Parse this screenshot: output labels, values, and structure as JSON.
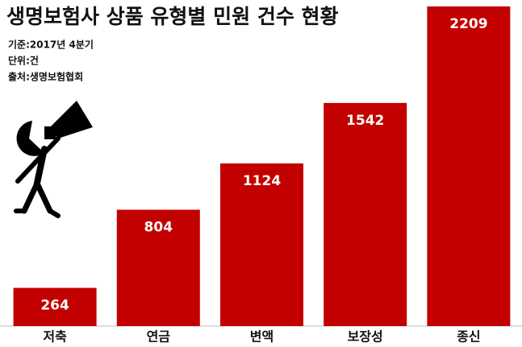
{
  "chart_data": {
    "type": "bar",
    "title": "생명보험사 상품 유형별 민원 건수 현황",
    "notes": [
      "기준:2017년 4분기",
      "단위:건",
      "출처:생명보험협회"
    ],
    "categories": [
      "저축",
      "연금",
      "변액",
      "보장성",
      "종신"
    ],
    "values": [
      264,
      804,
      1124,
      1542,
      2209
    ],
    "color": "#c30000"
  }
}
